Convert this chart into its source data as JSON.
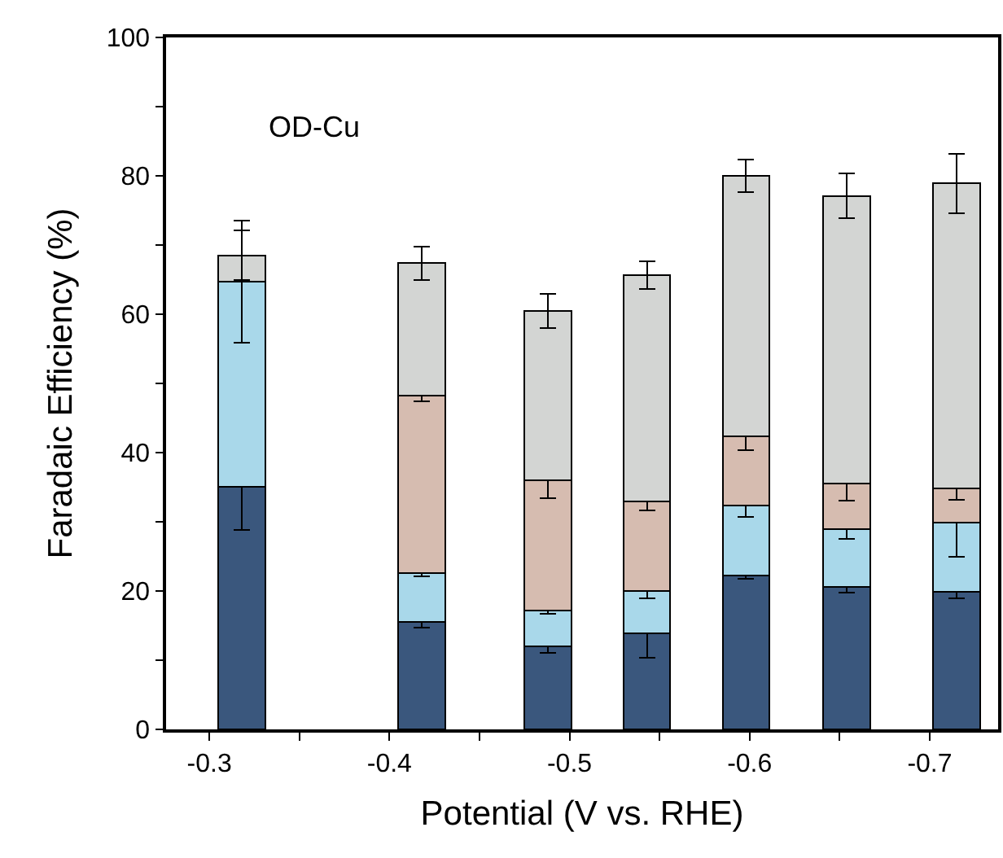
{
  "chart_data": {
    "type": "bar",
    "stacked": true,
    "xlabel": "Potential (V vs. RHE)",
    "ylabel": "Faradaic Efficiency (%)",
    "annotations": [
      "OD-Cu"
    ],
    "x": [
      -0.318,
      -0.418,
      -0.488,
      -0.543,
      -0.598,
      -0.654,
      -0.715
    ],
    "series": [
      {
        "color": "#3a577d",
        "values": [
          35.1,
          15.5,
          12.0,
          13.9,
          22.2,
          20.6,
          19.9
        ],
        "errors": [
          6.3,
          0.8,
          0.9,
          3.6,
          0.4,
          0.8,
          0.9
        ]
      },
      {
        "color": "#a9d8ea",
        "values": [
          29.6,
          7.1,
          5.2,
          6.1,
          10.1,
          8.4,
          10.0
        ],
        "errors": [
          8.8,
          0.5,
          0.5,
          1.0,
          1.6,
          1.5,
          5.0
        ]
      },
      {
        "color": "#d6bcb0",
        "values": [
          null,
          25.6,
          18.8,
          12.9,
          10.1,
          6.5,
          4.9
        ],
        "errors": [
          null,
          0.8,
          2.6,
          1.2,
          2.1,
          2.4,
          1.6
        ]
      },
      {
        "color": "#d3d5d3",
        "values": [
          3.8,
          19.2,
          24.5,
          32.7,
          37.6,
          41.6,
          44.1
        ],
        "errors": [
          3.6,
          2.4,
          2.5,
          2.0,
          2.3,
          3.2,
          4.3
        ]
      }
    ],
    "xlim": [
      -0.276,
      -0.738
    ],
    "ylim": [
      0,
      100
    ],
    "xticks": [
      -0.3,
      {
        "value": -0.35,
        "label": null
      },
      -0.4,
      {
        "value": -0.45,
        "label": null
      },
      -0.5,
      {
        "value": -0.55,
        "label": null
      },
      -0.6,
      {
        "value": -0.65,
        "label": null
      },
      -0.7
    ],
    "yticks": [
      0,
      {
        "value": 10,
        "label": null
      },
      20,
      {
        "value": 30,
        "label": null
      },
      40,
      {
        "value": 50,
        "label": null
      },
      60,
      {
        "value": 70,
        "label": null
      },
      80,
      {
        "value": 90,
        "label": null
      },
      100
    ]
  }
}
